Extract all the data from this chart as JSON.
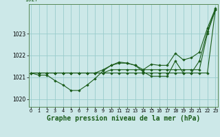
{
  "background_color": "#cce8e8",
  "grid_color": "#99cccc",
  "line_color": "#1a5c1a",
  "marker_color": "#1a5c1a",
  "xlabel": "Graphe pression niveau de la mer (hPa)",
  "xlabel_fontsize": 7.0,
  "x_ticks": [
    0,
    1,
    2,
    3,
    4,
    5,
    6,
    7,
    8,
    9,
    10,
    11,
    12,
    13,
    14,
    15,
    16,
    17,
    18,
    19,
    20,
    21,
    22,
    23
  ],
  "ylim": [
    1019.65,
    1024.35
  ],
  "yticks": [
    1020,
    1021,
    1022,
    1023
  ],
  "ytick_labels": [
    "1020",
    "1021",
    "1022",
    "1023"
  ],
  "xlim": [
    -0.3,
    23.3
  ],
  "series": [
    [
      1021.2,
      1021.2,
      1021.2,
      1021.2,
      1021.2,
      1021.2,
      1021.2,
      1021.2,
      1021.2,
      1021.2,
      1021.2,
      1021.2,
      1021.2,
      1021.2,
      1021.2,
      1021.2,
      1021.2,
      1021.2,
      1021.2,
      1021.2,
      1021.2,
      1021.2,
      1021.2,
      1024.1
    ],
    [
      1021.2,
      1021.1,
      1021.1,
      1020.85,
      1020.65,
      1020.4,
      1020.4,
      1020.65,
      1020.95,
      1021.3,
      1021.55,
      1021.65,
      1021.65,
      1021.55,
      1021.25,
      1021.05,
      1021.05,
      1021.05,
      1021.75,
      1021.2,
      1021.2,
      1021.75,
      1023.1,
      1024.1
    ],
    [
      1021.2,
      1021.2,
      1021.2,
      1021.2,
      1021.2,
      1021.2,
      1021.2,
      1021.2,
      1021.2,
      1021.35,
      1021.55,
      1021.7,
      1021.65,
      1021.55,
      1021.35,
      1021.6,
      1021.55,
      1021.55,
      1022.1,
      1021.8,
      1021.9,
      1022.15,
      1023.25,
      1024.15
    ],
    [
      1021.2,
      1021.2,
      1021.2,
      1021.2,
      1021.2,
      1021.2,
      1021.2,
      1021.2,
      1021.2,
      1021.2,
      1021.35,
      1021.35,
      1021.35,
      1021.35,
      1021.35,
      1021.35,
      1021.35,
      1021.35,
      1021.35,
      1021.35,
      1021.35,
      1021.35,
      1023.0,
      1024.1
    ]
  ]
}
